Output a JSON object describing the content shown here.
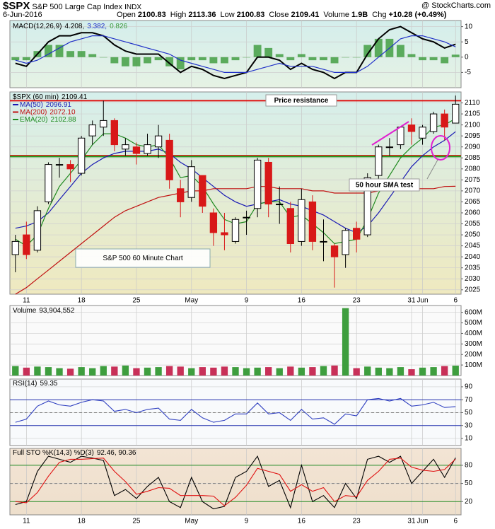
{
  "header": {
    "symbol": "$SPX",
    "name": "S&P 500 Large Cap Index",
    "exchange": "INDX",
    "copyright": "@ StockCharts.com",
    "date": "6-Jun-2016",
    "quote": [
      {
        "label": "Open",
        "value": 2100.83
      },
      {
        "label": "High",
        "value": 2113.36
      },
      {
        "label": "Low",
        "value": 2100.83
      },
      {
        "label": "Close",
        "value": 2109.41
      },
      {
        "label": "Volume",
        "value": "1.9B"
      },
      {
        "label": "Chg",
        "value": "+10.28 (+0.49%)"
      }
    ]
  },
  "chart_data": [
    {
      "type": "macd",
      "title": "MACD(12,26,9)",
      "series": [
        {
          "kind": "line",
          "color": "#000000",
          "label": "4.208,",
          "values": [
            -2,
            -3,
            1,
            5,
            7,
            7,
            8,
            8,
            7,
            4,
            2,
            1,
            1,
            1,
            -2,
            -5,
            -3,
            -4,
            -6,
            -7,
            -6,
            -5,
            0,
            0,
            -1,
            -4,
            -2,
            -4,
            -5,
            -7,
            -5,
            -5,
            1,
            6,
            9,
            10,
            8,
            6,
            5,
            3,
            4.208
          ]
        },
        {
          "kind": "line",
          "color": "#2030c8",
          "label": "3.382,",
          "values": [
            -1,
            -2,
            -1,
            1,
            3,
            5,
            6,
            7,
            7,
            6,
            5,
            4,
            3,
            2,
            1,
            -1,
            -2,
            -3,
            -4,
            -5,
            -5,
            -5,
            -4,
            -3,
            -2,
            -3,
            -3,
            -3,
            -4,
            -5,
            -5,
            -5,
            -3,
            0,
            3,
            6,
            7,
            7,
            6,
            5,
            3.382
          ]
        },
        {
          "kind": "bar",
          "color": "#3a9a3a",
          "label": "0.826",
          "values": [
            -1,
            -1,
            2,
            4,
            4,
            2,
            2,
            1,
            0,
            -2,
            -3,
            -3,
            -2,
            -1,
            -3,
            -4,
            -1,
            -1,
            -2,
            -2,
            -1,
            0,
            4,
            3,
            1,
            -1,
            1,
            -1,
            -1,
            -2,
            0,
            0,
            4,
            6,
            6,
            4,
            1,
            -1,
            -1,
            -2,
            0.826
          ]
        }
      ],
      "ylim": [
        -10,
        12
      ],
      "yticks": [
        10,
        5,
        0,
        -5
      ],
      "grid": true
    },
    {
      "type": "candlestick",
      "title": "$SPX (60 min)",
      "last": 2109.41,
      "categories": [
        null,
        "11",
        null,
        null,
        null,
        null,
        "18",
        null,
        null,
        null,
        null,
        "25",
        null,
        null,
        null,
        null,
        "May",
        null,
        null,
        null,
        null,
        "9",
        null,
        null,
        null,
        null,
        "16",
        null,
        null,
        null,
        null,
        "23",
        null,
        null,
        null,
        null,
        "31",
        "Jun",
        null,
        null,
        "6"
      ],
      "open": [
        2041,
        2050,
        2043,
        2065,
        2082,
        2082,
        2078,
        2095,
        2099,
        2102,
        2089,
        2090,
        2087,
        2090,
        2093,
        2071,
        2067,
        2077,
        2060,
        2051,
        2047,
        2058,
        2062,
        2083,
        2064,
        2062,
        2047,
        2065,
        2047,
        2045,
        2041,
        2053,
        2050,
        2077,
        2090,
        2091,
        2100,
        2094,
        2097,
        2105,
        2100.83
      ],
      "high": [
        2050,
        2056,
        2063,
        2083,
        2085,
        2084,
        2095,
        2102,
        2111,
        2103,
        2094,
        2092,
        2096,
        2100,
        2096,
        2075,
        2084,
        2077,
        2062,
        2060,
        2058,
        2061,
        2085,
        2085,
        2072,
        2065,
        2071,
        2068,
        2057,
        2046,
        2053,
        2056,
        2078,
        2091,
        2094,
        2099,
        2103,
        2100,
        2106,
        2107,
        2113.36
      ],
      "low": [
        2033,
        2039,
        2042,
        2064,
        2076,
        2074,
        2077,
        2091,
        2095,
        2088,
        2086,
        2082,
        2086,
        2085,
        2071,
        2058,
        2065,
        2060,
        2045,
        2043,
        2046,
        2050,
        2058,
        2058,
        2055,
        2042,
        2045,
        2043,
        2038,
        2026,
        2035,
        2042,
        2049,
        2074,
        2086,
        2089,
        2091,
        2091,
        2096,
        2093,
        2100.83
      ],
      "close": [
        2047,
        2041,
        2061,
        2082,
        2082,
        2080,
        2094,
        2100,
        2102,
        2091,
        2091,
        2087,
        2091,
        2095,
        2075,
        2065,
        2081,
        2063,
        2051,
        2050,
        2057,
        2058,
        2084,
        2064,
        2064,
        2046,
        2066,
        2047,
        2047,
        2040,
        2052,
        2048,
        2076,
        2090,
        2090,
        2099,
        2097,
        2099,
        2105,
        2099,
        2109.41
      ],
      "up_color": "#000000",
      "down_color": "#d81818",
      "series": [
        {
          "name": "MA(50)",
          "label": 2096.91,
          "color": "#1a1ab4",
          "values": [
            2053,
            2054,
            2056,
            2060,
            2066,
            2072,
            2078,
            2082,
            2085,
            2087,
            2088,
            2088,
            2088,
            2089,
            2087,
            2083,
            2080,
            2076,
            2072,
            2068,
            2065,
            2063,
            2064,
            2065,
            2066,
            2064,
            2063,
            2061,
            2059,
            2056,
            2053,
            2051,
            2054,
            2060,
            2067,
            2074,
            2081,
            2086,
            2090,
            2093,
            2096.91
          ]
        },
        {
          "name": "MA(200)",
          "label": "2072.10",
          "color": "#c01010",
          "values": [
            2023,
            2026,
            2030,
            2034,
            2038,
            2042,
            2046,
            2050,
            2054,
            2058,
            2061,
            2063,
            2065,
            2067,
            2068,
            2069,
            2070,
            2070,
            2071,
            2071,
            2071,
            2071,
            2072,
            2072,
            2071,
            2071,
            2071,
            2070,
            2070,
            2069,
            2069,
            2069,
            2069,
            2070,
            2070,
            2070,
            2071,
            2071,
            2071,
            2072,
            2072.1
          ]
        },
        {
          "name": "EMA(20)",
          "label": 2102.88,
          "color": "#208a20",
          "values": [
            2048,
            2045,
            2050,
            2062,
            2072,
            2078,
            2084,
            2091,
            2096,
            2096,
            2094,
            2091,
            2090,
            2091,
            2085,
            2076,
            2077,
            2072,
            2064,
            2057,
            2055,
            2056,
            2064,
            2065,
            2065,
            2058,
            2059,
            2055,
            2051,
            2046,
            2047,
            2048,
            2057,
            2069,
            2077,
            2085,
            2090,
            2094,
            2099,
            2100,
            2102.88
          ]
        }
      ],
      "lines": [
        {
          "value": 2111,
          "color": "#e01010"
        },
        {
          "value": 2086,
          "color": "#e01010"
        },
        {
          "value": 2085.6,
          "color": "#20a020"
        }
      ],
      "annotations": [
        "Price resistance",
        "50 hour SMA test",
        "S&P 500 60 Minute Chart"
      ],
      "ylim": [
        2023,
        2115
      ],
      "yticks": [
        2025,
        2030,
        2035,
        2040,
        2045,
        2050,
        2055,
        2060,
        2065,
        2070,
        2075,
        2080,
        2085,
        2090,
        2095,
        2100,
        2105,
        2110
      ],
      "grid": true
    },
    {
      "type": "volume",
      "title": "Volume",
      "label": "93,904,552",
      "up_color": "#3e9e3e",
      "down_color": "#c83058",
      "values": [
        90000000,
        75000000,
        85000000,
        80000000,
        70000000,
        65000000,
        80000000,
        70000000,
        90000000,
        85000000,
        95000000,
        70000000,
        75000000,
        80000000,
        90000000,
        85000000,
        70000000,
        80000000,
        75000000,
        85000000,
        80000000,
        70000000,
        75000000,
        80000000,
        70000000,
        85000000,
        75000000,
        80000000,
        90000000,
        95000000,
        640000000,
        70000000,
        85000000,
        75000000,
        70000000,
        80000000,
        60000000,
        75000000,
        80000000,
        90000000,
        93904552
      ],
      "ylim": [
        0,
        665000000
      ],
      "yticks": [
        {
          "value": 100000000,
          "label": "100M"
        },
        {
          "value": 200000000,
          "label": "200M"
        },
        {
          "value": 300000000,
          "label": "300M"
        },
        {
          "value": 400000000,
          "label": "400M"
        },
        {
          "value": 500000000,
          "label": "500M"
        },
        {
          "value": 600000000,
          "label": "600M"
        }
      ],
      "grid": true
    },
    {
      "type": "line",
      "title": "RSI(14)",
      "label": 59.35,
      "series": [
        {
          "color": "#3040c0",
          "values": [
            35,
            40,
            60,
            68,
            62,
            60,
            66,
            70,
            68,
            52,
            55,
            50,
            55,
            57,
            40,
            38,
            55,
            42,
            35,
            38,
            48,
            48,
            65,
            48,
            50,
            38,
            55,
            40,
            42,
            32,
            48,
            45,
            70,
            72,
            68,
            72,
            60,
            62,
            66,
            58,
            59.35
          ]
        }
      ],
      "levels": [
        {
          "value": 70,
          "color": "#2030b0",
          "dash": false
        },
        {
          "value": 50,
          "color": "#808080",
          "dash": true
        },
        {
          "value": 30,
          "color": "#2030b0",
          "dash": false
        }
      ],
      "ylim": [
        -1,
        102
      ],
      "yticks": [
        90,
        70,
        50,
        30,
        10
      ],
      "grid": true
    },
    {
      "type": "line",
      "title": "Full STO %K(14,3) %D(3)",
      "label": "92.46, 90.36",
      "categories": [
        null,
        "11",
        null,
        null,
        null,
        null,
        "18",
        null,
        null,
        null,
        null,
        "25",
        null,
        null,
        null,
        null,
        "May",
        null,
        null,
        null,
        null,
        "9",
        null,
        null,
        null,
        null,
        "16",
        null,
        null,
        null,
        null,
        "23",
        null,
        null,
        null,
        null,
        "31",
        "Jun",
        null,
        null,
        "6"
      ],
      "series": [
        {
          "color": "#000000",
          "values": [
            15,
            20,
            70,
            95,
            90,
            85,
            95,
            92,
            88,
            30,
            40,
            25,
            45,
            60,
            20,
            10,
            60,
            20,
            8,
            12,
            60,
            70,
            95,
            45,
            55,
            10,
            80,
            20,
            30,
            10,
            50,
            25,
            90,
            95,
            85,
            95,
            50,
            70,
            90,
            60,
            92.46
          ]
        },
        {
          "color": "#e01010",
          "values": [
            20,
            18,
            35,
            62,
            85,
            90,
            90,
            91,
            92,
            70,
            53,
            32,
            37,
            43,
            42,
            30,
            30,
            30,
            29,
            13,
            27,
            47,
            75,
            70,
            65,
            37,
            48,
            37,
            43,
            20,
            30,
            28,
            55,
            70,
            90,
            92,
            77,
            72,
            70,
            73,
            90.36
          ]
        }
      ],
      "levels": [
        {
          "value": 80,
          "color": "#208a20",
          "dash": false
        },
        {
          "value": 50,
          "color": "#808080",
          "dash": true
        },
        {
          "value": 20,
          "color": "#208a20",
          "dash": false
        }
      ],
      "ylim": [
        -2,
        108
      ],
      "yticks": [
        80,
        50,
        20
      ],
      "grid": true
    }
  ]
}
